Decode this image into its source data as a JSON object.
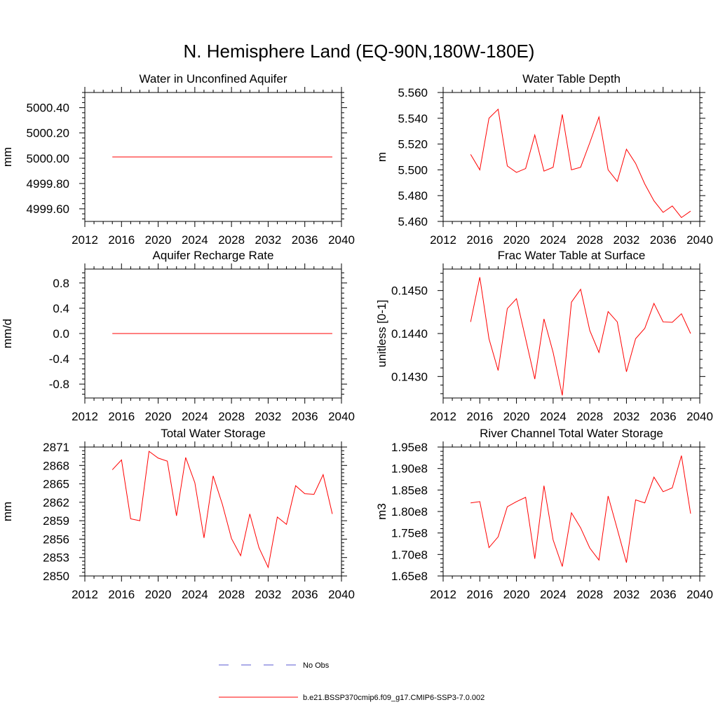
{
  "page_title": "N. Hemisphere Land (EQ-90N,180W-180E)",
  "chart_data": [
    {
      "type": "line",
      "title": "Water in Unconfined Aquifer",
      "ylabel": "mm",
      "xlim": [
        2012,
        2040
      ],
      "xticks": [
        2012,
        2016,
        2020,
        2024,
        2028,
        2032,
        2036,
        2040
      ],
      "ylim": [
        4999.5,
        5000.52
      ],
      "yticks": [
        "4999.60",
        "4999.80",
        "5000.00",
        "5000.20",
        "5000.40"
      ],
      "x": [
        2015,
        2016,
        2017,
        2018,
        2019,
        2020,
        2021,
        2022,
        2023,
        2024,
        2025,
        2026,
        2027,
        2028,
        2029,
        2030,
        2031,
        2032,
        2033,
        2034,
        2035,
        2036,
        2037,
        2038,
        2039
      ],
      "series": [
        {
          "values": [
            5000.01,
            5000.01,
            5000.01,
            5000.01,
            5000.01,
            5000.01,
            5000.01,
            5000.01,
            5000.01,
            5000.01,
            5000.01,
            5000.01,
            5000.01,
            5000.01,
            5000.01,
            5000.01,
            5000.01,
            5000.01,
            5000.01,
            5000.01,
            5000.01,
            5000.01,
            5000.01,
            5000.01,
            5000.01
          ]
        }
      ]
    },
    {
      "type": "line",
      "title": "Water Table Depth",
      "ylabel": "m",
      "xlim": [
        2012,
        2040
      ],
      "xticks": [
        2012,
        2016,
        2020,
        2024,
        2028,
        2032,
        2036,
        2040
      ],
      "ylim": [
        5.46,
        5.56
      ],
      "yticks": [
        "5.460",
        "5.480",
        "5.500",
        "5.520",
        "5.540",
        "5.560"
      ],
      "x": [
        2015,
        2016,
        2017,
        2018,
        2019,
        2020,
        2021,
        2022,
        2023,
        2024,
        2025,
        2026,
        2027,
        2028,
        2029,
        2030,
        2031,
        2032,
        2033,
        2034,
        2035,
        2036,
        2037,
        2038,
        2039
      ],
      "series": [
        {
          "values": [
            5.512,
            5.5,
            5.54,
            5.547,
            5.503,
            5.498,
            5.501,
            5.527,
            5.499,
            5.502,
            5.543,
            5.5,
            5.502,
            5.521,
            5.541,
            5.5,
            5.491,
            5.516,
            5.505,
            5.489,
            5.476,
            5.467,
            5.472,
            5.463,
            5.468
          ]
        }
      ]
    },
    {
      "type": "line",
      "title": "Aquifer Recharge Rate",
      "ylabel": "mm/d",
      "xlim": [
        2012,
        2040
      ],
      "xticks": [
        2012,
        2016,
        2020,
        2024,
        2028,
        2032,
        2036,
        2040
      ],
      "ylim": [
        -1.02,
        1.02
      ],
      "yticks": [
        "-0.8",
        "-0.4",
        "0.0",
        "0.4",
        "0.8"
      ],
      "x": [
        2015,
        2016,
        2017,
        2018,
        2019,
        2020,
        2021,
        2022,
        2023,
        2024,
        2025,
        2026,
        2027,
        2028,
        2029,
        2030,
        2031,
        2032,
        2033,
        2034,
        2035,
        2036,
        2037,
        2038,
        2039
      ],
      "series": [
        {
          "values": [
            0,
            0,
            0,
            0,
            0,
            0,
            0,
            0,
            0,
            0,
            0,
            0,
            0,
            0,
            0,
            0,
            0,
            0,
            0,
            0,
            0,
            0,
            0,
            0,
            0
          ]
        }
      ]
    },
    {
      "type": "line",
      "title": "Frac Water Table at Surface",
      "ylabel": "unitless [0-1]",
      "xlim": [
        2012,
        2040
      ],
      "xticks": [
        2012,
        2016,
        2020,
        2024,
        2028,
        2032,
        2036,
        2040
      ],
      "ylim": [
        0.1425,
        0.1455
      ],
      "yticks": [
        "0.1430",
        "0.1440",
        "0.1450"
      ],
      "x": [
        2015,
        2016,
        2017,
        2018,
        2019,
        2020,
        2021,
        2022,
        2023,
        2024,
        2025,
        2026,
        2027,
        2028,
        2029,
        2030,
        2031,
        2032,
        2033,
        2034,
        2035,
        2036,
        2037,
        2038,
        2039
      ],
      "series": [
        {
          "values": [
            0.14427,
            0.14531,
            0.14388,
            0.14314,
            0.14458,
            0.14481,
            0.14388,
            0.14294,
            0.14434,
            0.14356,
            0.14256,
            0.14473,
            0.14503,
            0.14407,
            0.14356,
            0.14451,
            0.14427,
            0.14311,
            0.14388,
            0.14412,
            0.1447,
            0.14427,
            0.14426,
            0.14446,
            0.144
          ]
        }
      ]
    },
    {
      "type": "line",
      "title": "Total Water Storage",
      "ylabel": "mm",
      "xlim": [
        2012,
        2040
      ],
      "xticks": [
        2012,
        2016,
        2020,
        2024,
        2028,
        2032,
        2036,
        2040
      ],
      "ylim": [
        2850,
        2871
      ],
      "yticks": [
        "2850",
        "2853",
        "2856",
        "2859",
        "2862",
        "2865",
        "2868",
        "2871"
      ],
      "x": [
        2015,
        2016,
        2017,
        2018,
        2019,
        2020,
        2021,
        2022,
        2023,
        2024,
        2025,
        2026,
        2027,
        2028,
        2029,
        2030,
        2031,
        2032,
        2033,
        2034,
        2035,
        2036,
        2037,
        2038,
        2039
      ],
      "series": [
        {
          "values": [
            2867.3,
            2868.9,
            2859.3,
            2859.0,
            2870.3,
            2869.2,
            2868.7,
            2859.8,
            2869.3,
            2865.2,
            2856.2,
            2866.3,
            2861.7,
            2856.1,
            2853.3,
            2860.1,
            2854.6,
            2851.4,
            2859.6,
            2858.4,
            2864.7,
            2863.4,
            2863.3,
            2866.5,
            2860.1
          ]
        }
      ]
    },
    {
      "type": "line",
      "title": "River Channel Total Water Storage",
      "ylabel": "m3",
      "xlim": [
        2012,
        2040
      ],
      "xticks": [
        2012,
        2016,
        2020,
        2024,
        2028,
        2032,
        2036,
        2040
      ],
      "ylim": [
        165000000,
        195000000
      ],
      "yticks": [
        "1.65e8",
        "1.70e8",
        "1.75e8",
        "1.80e8",
        "1.85e8",
        "1.90e8",
        "1.95e8"
      ],
      "x": [
        2015,
        2016,
        2017,
        2018,
        2019,
        2020,
        2021,
        2022,
        2023,
        2024,
        2025,
        2026,
        2027,
        2028,
        2029,
        2030,
        2031,
        2032,
        2033,
        2034,
        2035,
        2036,
        2037,
        2038,
        2039
      ],
      "series": [
        {
          "values": [
            182000000,
            182300000,
            171600000,
            174100000,
            181100000,
            182300000,
            183300000,
            169000000,
            186000000,
            173400000,
            167200000,
            179700000,
            176200000,
            171500000,
            168700000,
            183600000,
            175900000,
            168100000,
            182700000,
            182000000,
            188000000,
            184600000,
            185500000,
            193000000,
            179500000
          ]
        }
      ]
    }
  ],
  "legend": {
    "entries": [
      {
        "label": "No Obs",
        "color": "#5a5ad2",
        "dash": "dashed"
      },
      {
        "label": "b.e21.BSSP370cmip6.f09_g17.CMIP6-SSP3-7.0.002",
        "color": "#ff0000",
        "dash": "solid"
      }
    ]
  },
  "colors": {
    "series": "#ff0000",
    "axes": "#000000"
  }
}
